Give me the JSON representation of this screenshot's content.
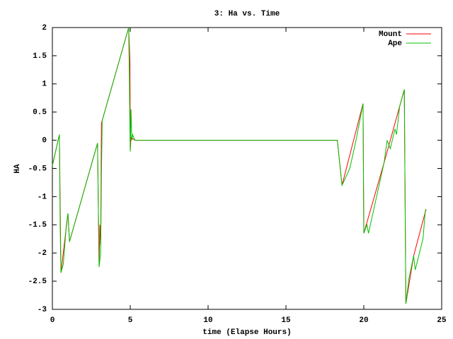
{
  "chart_data": {
    "type": "line",
    "title": "3: Ha vs. Time",
    "x_label": "time (Elapse Hours)",
    "y_label": "HA",
    "xlim": [
      0,
      25
    ],
    "xticks": [
      0,
      5,
      10,
      15,
      20,
      25
    ],
    "ylim": [
      -3,
      2
    ],
    "yticks": [
      -3,
      -2.5,
      -2,
      -1.5,
      -1,
      -0.5,
      0,
      0.5,
      1,
      1.5,
      2
    ],
    "grid": false,
    "legend": "top-right",
    "series": [
      {
        "name": "Mount",
        "color": "#ff0000",
        "x": [
          0,
          0.45,
          0.55,
          1.0,
          1.1,
          2.9,
          3.0,
          3.05,
          3.1,
          3.15,
          3.2,
          4.9,
          4.98,
          4.99,
          5.0,
          5.05,
          5.3,
          18.3,
          18.6,
          19.95,
          20.0,
          21.3,
          22.6,
          22.7,
          23.2,
          24.0
        ],
        "values": [
          -0.45,
          0.1,
          -2.35,
          -1.3,
          -1.8,
          -0.05,
          -2.25,
          -1.5,
          -1.85,
          0.3,
          0.35,
          2.0,
          1.4,
          0.9,
          -0.2,
          0.05,
          0,
          0,
          -0.8,
          0.65,
          -1.65,
          -0.4,
          0.9,
          -2.9,
          -2.05,
          -1.22
        ]
      },
      {
        "name": "Ape",
        "color": "#00c000",
        "x": [
          0,
          0.45,
          0.5,
          0.55,
          0.7,
          0.9,
          1.0,
          1.1,
          2.9,
          3.0,
          3.1,
          3.15,
          3.2,
          3.25,
          4.9,
          5.0,
          5.05,
          5.1,
          5.15,
          5.3,
          18.3,
          18.6,
          19.1,
          19.5,
          19.95,
          20.0,
          20.2,
          20.3,
          21.3,
          21.5,
          21.7,
          22.0,
          22.1,
          22.3,
          22.6,
          22.7,
          22.9,
          23.2,
          23.3,
          23.8,
          23.95,
          24.0
        ],
        "values": [
          -0.45,
          0.1,
          -1.5,
          -2.35,
          -2.2,
          -1.5,
          -1.3,
          -1.8,
          -0.05,
          -2.25,
          -2.0,
          -0.6,
          0.35,
          0.4,
          2.0,
          -0.2,
          0.55,
          0.0,
          0.1,
          0,
          0,
          -0.8,
          -0.5,
          0.0,
          0.65,
          -1.65,
          -1.5,
          -1.65,
          -0.4,
          0,
          -0.15,
          0.2,
          0.1,
          0.6,
          0.9,
          -2.9,
          -2.45,
          -2.05,
          -2.3,
          -1.75,
          -1.25,
          -1.22
        ]
      }
    ]
  }
}
